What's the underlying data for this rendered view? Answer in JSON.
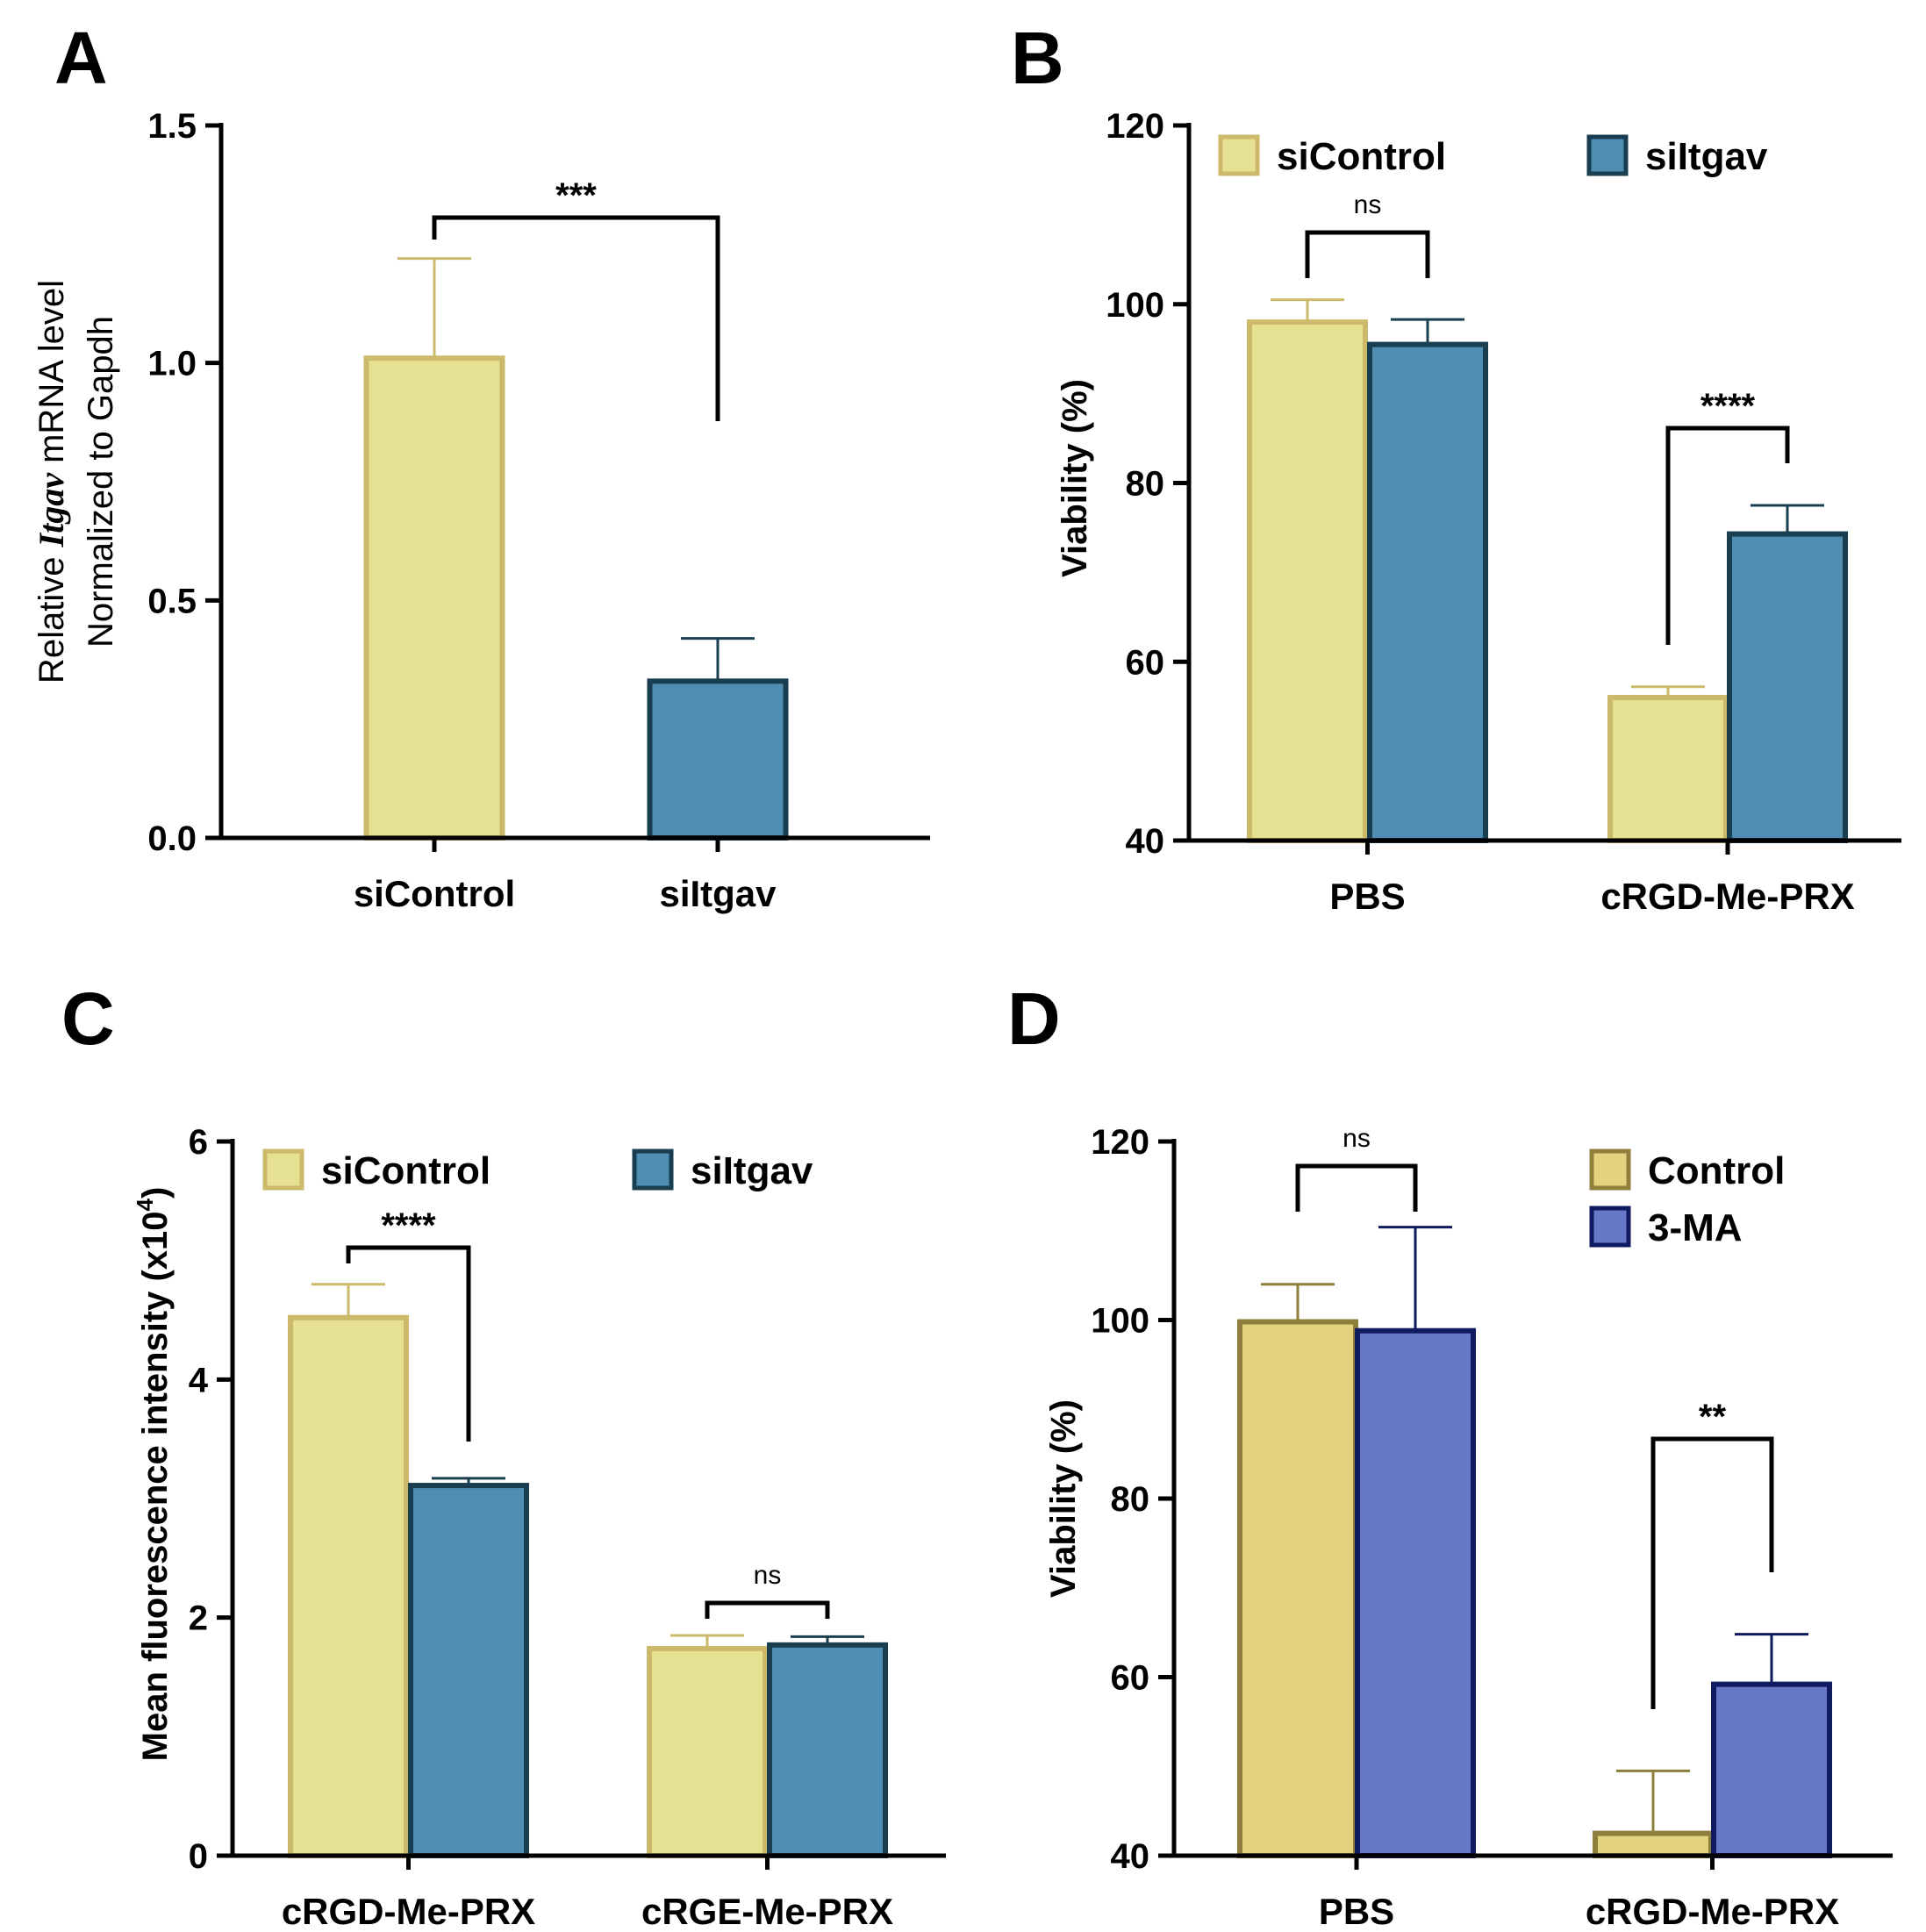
{
  "chart_data": [
    {
      "panel": "A",
      "type": "bar",
      "categories": [
        "siControl",
        "siItgav"
      ],
      "ylabel_parts": [
        "Relative ",
        "Itgav",
        " mRNA level"
      ],
      "ylabel_line2": "Normalized to Gapdh",
      "ylim": [
        0,
        1.5
      ],
      "yticks": [
        0.0,
        0.5,
        1.0,
        1.5
      ],
      "ytick_labels": [
        "0.0",
        "0.5",
        "1.0",
        "1.5"
      ],
      "series": [
        {
          "values": [
            1.01,
            0.33
          ],
          "errors": [
            0.21,
            0.09
          ],
          "colors": [
            "#e6e093",
            "#4f8db3"
          ],
          "edges": [
            "#cdb96a",
            "#183e4f"
          ]
        }
      ],
      "annotations": [
        {
          "label": "***",
          "from": 0,
          "to": 1
        }
      ],
      "legend": null
    },
    {
      "panel": "B",
      "type": "bar",
      "categories": [
        "PBS",
        "cRGD-Me-PRX"
      ],
      "ylabel": "Viability (%)",
      "ylim": [
        40,
        120
      ],
      "yticks": [
        40,
        60,
        80,
        100,
        120
      ],
      "ytick_labels": [
        "40",
        "60",
        "80",
        "100",
        "120"
      ],
      "series": [
        {
          "name": "siControl",
          "values": [
            98,
            56
          ],
          "errors": [
            2.5,
            1.2
          ],
          "color": "#e6e093",
          "edge": "#cdb96a"
        },
        {
          "name": "siItgav",
          "values": [
            95.5,
            74.3
          ],
          "errors": [
            2.8,
            3.2
          ],
          "color": "#4f8db3",
          "edge": "#183e4f"
        }
      ],
      "annotations": [
        {
          "label": "ns",
          "group": 0
        },
        {
          "label": "****",
          "group": 1
        }
      ],
      "legend": "top, horizontal"
    },
    {
      "panel": "C",
      "type": "bar",
      "categories": [
        "cRGD-Me-PRX",
        "cRGE-Me-PRX"
      ],
      "ylabel": "Mean fluorescence intensity (x10",
      "ylabel_sup": "4",
      "ylabel_end": ")",
      "ylim": [
        0,
        6
      ],
      "yticks": [
        0,
        2,
        4,
        6
      ],
      "ytick_labels": [
        "0",
        "2",
        "4",
        "6"
      ],
      "series": [
        {
          "name": "siControl",
          "values": [
            4.52,
            1.74
          ],
          "errors": [
            0.28,
            0.11
          ],
          "color": "#e6e093",
          "edge": "#cdb96a"
        },
        {
          "name": "siItgav",
          "values": [
            3.11,
            1.77
          ],
          "errors": [
            0.06,
            0.07
          ],
          "color": "#4f8db3",
          "edge": "#183e4f"
        }
      ],
      "annotations": [
        {
          "label": "****",
          "group": 0
        },
        {
          "label": "ns",
          "group": 1
        }
      ],
      "legend": "top, horizontal"
    },
    {
      "panel": "D",
      "type": "bar",
      "categories": [
        "PBS",
        "cRGD-Me-PRX"
      ],
      "ylabel": "Viability (%)",
      "ylim": [
        40,
        120
      ],
      "yticks": [
        40,
        60,
        80,
        100,
        120
      ],
      "ytick_labels": [
        "40",
        "60",
        "80",
        "100",
        "120"
      ],
      "series": [
        {
          "name": "Control",
          "values": [
            99.8,
            42.5
          ],
          "errors": [
            4.2,
            7.0
          ],
          "color": "#e4d27e",
          "edge": "#8f7f3d"
        },
        {
          "name": "3-MA",
          "values": [
            98.8,
            59.2
          ],
          "errors": [
            11.6,
            5.6
          ],
          "color": "#6878c8",
          "edge": "#101a5e"
        }
      ],
      "annotations": [
        {
          "label": "ns",
          "group": 0
        },
        {
          "label": "**",
          "group": 1
        }
      ],
      "legend": "top-right, vertical"
    }
  ]
}
